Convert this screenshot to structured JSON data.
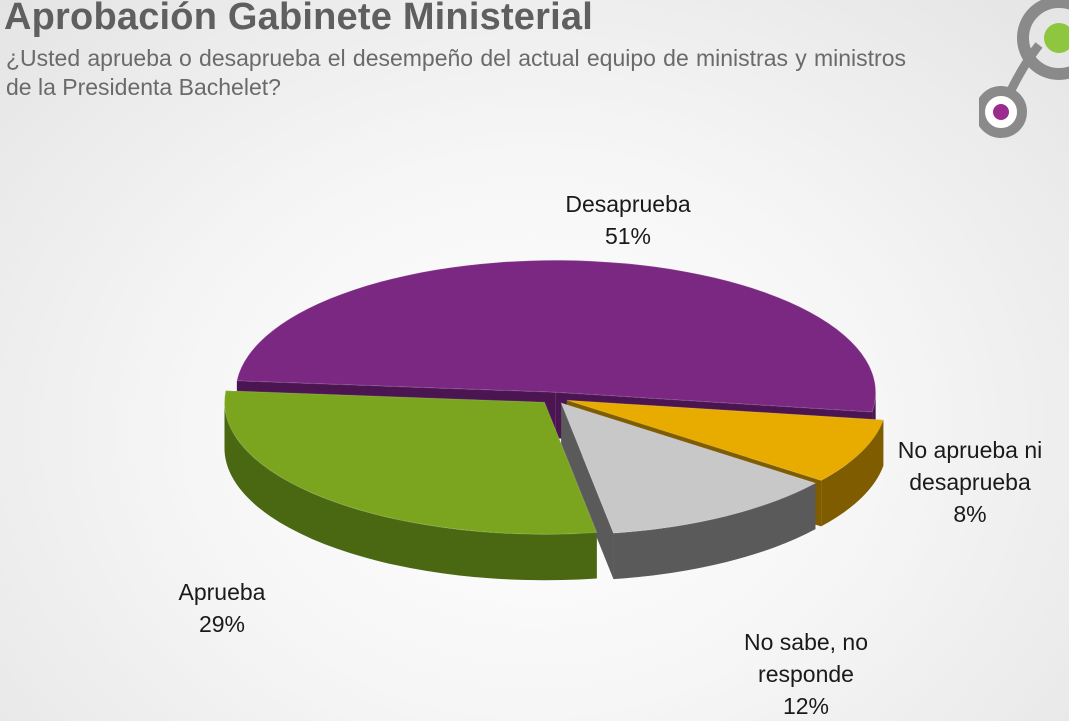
{
  "header": {
    "title": "Aprobación Gabinete Ministerial",
    "subtitle": "¿Usted aprueba o desaprueba el desempeño del actual equipo de ministras y ministros de la Presidenta Bachelet?"
  },
  "chart_data": {
    "type": "pie",
    "style": "3d-exploded",
    "slices": [
      {
        "label_lines": [
          "Desaprueba"
        ],
        "value": 51,
        "value_label": "51%",
        "color": "#7b2883",
        "side": "#4a1550"
      },
      {
        "label_lines": [
          "No aprueba ni",
          "desaprueba"
        ],
        "value": 8,
        "value_label": "8%",
        "color": "#e8ac00",
        "side": "#7f5c00"
      },
      {
        "label_lines": [
          "No sabe, no",
          "responde"
        ],
        "value": 12,
        "value_label": "12%",
        "color": "#c8c8c8",
        "side": "#5a5a5a"
      },
      {
        "label_lines": [
          "Aprueba"
        ],
        "value": 29,
        "value_label": "29%",
        "color": "#7ba51f",
        "side": "#4a6812"
      }
    ],
    "legend": "none",
    "labels": "outside"
  },
  "colors": {
    "logo_gray": "#8a8a8a",
    "logo_green": "#8ec63f",
    "logo_purple": "#9b2c8e"
  }
}
